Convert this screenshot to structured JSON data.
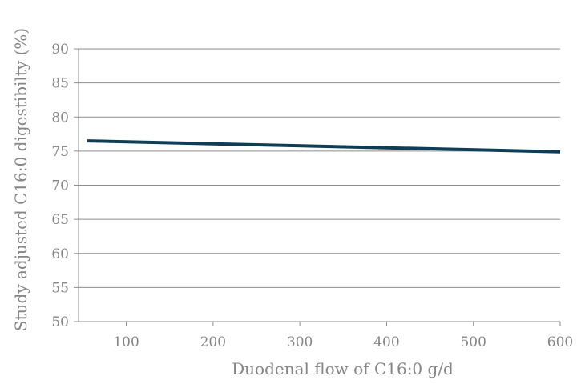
{
  "chart_data": {
    "type": "line",
    "title": "",
    "xlabel": "Duodenal flow of C16:0 g/d",
    "ylabel": "Study adjusted C16:0 digestibilty (%)",
    "xlim": [
      45,
      600
    ],
    "ylim": [
      50,
      90
    ],
    "x_ticks": [
      100,
      200,
      300,
      400,
      500,
      600
    ],
    "y_ticks": [
      50,
      55,
      60,
      65,
      70,
      75,
      80,
      85,
      90
    ],
    "grid": true,
    "series": [
      {
        "color": "#0f3d56",
        "x": [
          55,
          600
        ],
        "y": [
          76.5,
          74.9
        ]
      }
    ]
  }
}
